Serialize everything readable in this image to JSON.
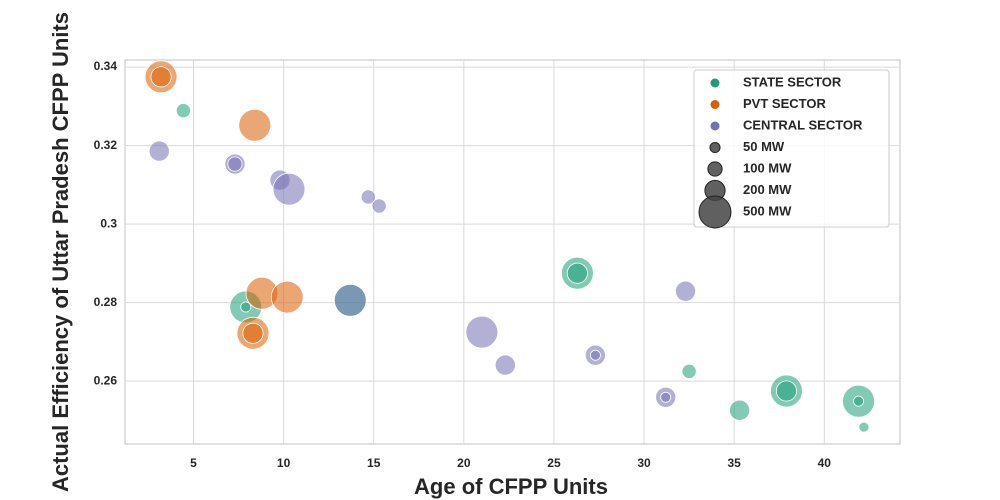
{
  "chart_data": {
    "type": "scatter",
    "x_label": "Age of CFPP Units",
    "y_label": "Actual Efficiency of Uttar Pradesh CFPP Units",
    "xlim": [
      1.2,
      44.2
    ],
    "ylim": [
      0.244,
      0.3418
    ],
    "xticks": [
      5,
      10,
      15,
      20,
      25,
      30,
      35,
      40
    ],
    "yticks": [
      0.26,
      0.28,
      0.3,
      0.32,
      0.34
    ],
    "grid": true,
    "legend_position": "upper right",
    "series": [
      {
        "name": "STATE SECTOR",
        "color": "#1b9e77",
        "x": [
          4.44,
          7.9,
          7.9,
          26.3,
          26.3,
          32.5,
          35.3,
          37.9,
          37.9,
          41.9,
          41.9,
          42.2,
          13.7
        ],
        "values": [
          0.3289,
          0.2789,
          0.2789,
          0.2875,
          0.2875,
          0.2625,
          0.2526,
          0.2575,
          0.2575,
          0.2549,
          0.2549,
          0.2483,
          0.2806
        ],
        "sizes": [
          100,
          500,
          50,
          500,
          200,
          100,
          200,
          500,
          200,
          500,
          50,
          50,
          500
        ]
      },
      {
        "name": "PVT SECTOR",
        "color": "#d95f02",
        "x": [
          3.2,
          3.2,
          8.4,
          8.8,
          8.3,
          8.3,
          10.2
        ],
        "values": [
          0.3375,
          0.3375,
          0.3252,
          0.2824,
          0.2722,
          0.2722,
          0.2814
        ],
        "sizes": [
          500,
          200,
          500,
          500,
          500,
          200,
          500
        ]
      },
      {
        "name": "CENTRAL SECTOR",
        "color": "#7570b3",
        "x": [
          3.1,
          7.3,
          7.3,
          9.8,
          10.3,
          14.7,
          15.3,
          21.0,
          22.3,
          27.3,
          27.3,
          32.3,
          31.2,
          31.2,
          13.7
        ],
        "values": [
          0.3186,
          0.3153,
          0.3153,
          0.3112,
          0.3089,
          0.3069,
          0.3046,
          0.2725,
          0.2641,
          0.2666,
          0.2666,
          0.2829,
          0.2559,
          0.2559,
          0.2806
        ],
        "sizes": [
          200,
          200,
          100,
          200,
          500,
          100,
          100,
          500,
          200,
          200,
          50,
          200,
          200,
          50,
          500
        ]
      }
    ],
    "size_legend": [
      {
        "value": 50,
        "label": "50 MW"
      },
      {
        "value": 100,
        "label": "100 MW"
      },
      {
        "value": 200,
        "label": "200 MW"
      },
      {
        "value": 500,
        "label": "500 MW"
      }
    ]
  }
}
